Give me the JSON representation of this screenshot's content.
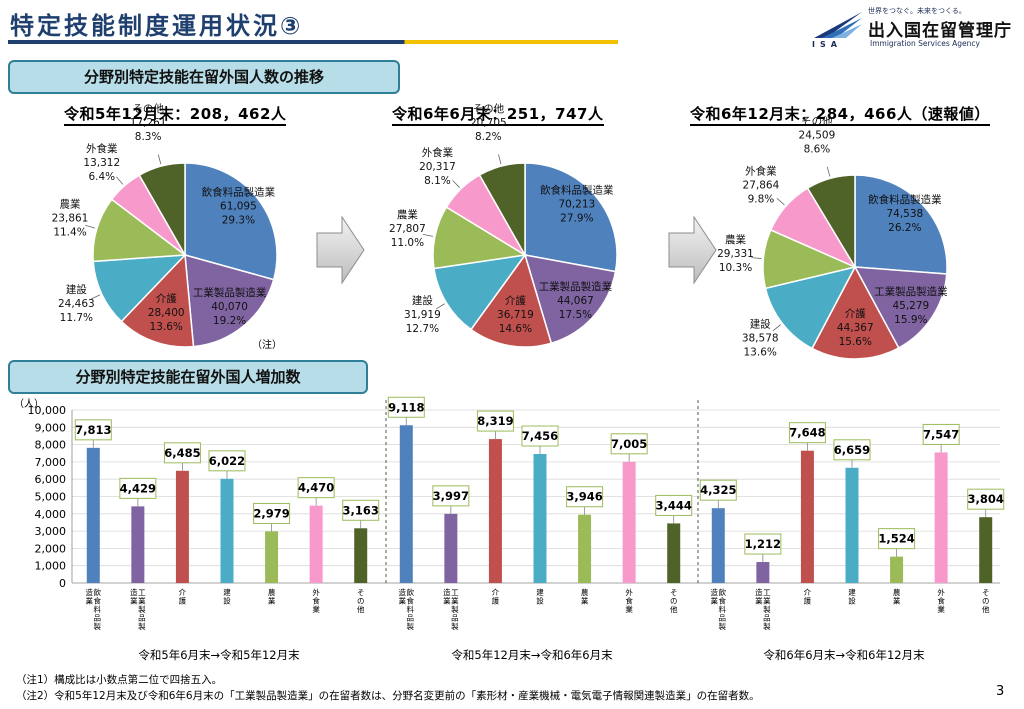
{
  "header": {
    "title": "特定技能制度運用状況③",
    "logo_slogan": "世界をつなぐ。未来をつくる。",
    "logo_abbr": "ISA",
    "logo_name": "出入国在留管理庁",
    "logo_en": "Immigration Services Agency"
  },
  "sections": {
    "pie_heading": "分野別特定技能在留外国人数の推移",
    "bar_heading": "分野別特定技能在留外国人増加数"
  },
  "colors": {
    "飲食料品製造業": "#4f81bd",
    "工業製品製造業": "#8064a2",
    "介護": "#c0504d",
    "建設": "#4bacc6",
    "農業": "#9bbb59",
    "外食業": "#f79acb",
    "その他": "#4f6228"
  },
  "chart_data": [
    {
      "type": "pie",
      "title": "令和5年12月末：208，462人",
      "note": "（注）",
      "slices": [
        {
          "name": "飲食料品製造業",
          "value": 61095,
          "value_label": "61,095",
          "pct_label": "29.3%"
        },
        {
          "name": "工業製品製造業",
          "value": 40070,
          "value_label": "40,070",
          "pct_label": "19.2%"
        },
        {
          "name": "介護",
          "value": 28400,
          "value_label": "28,400",
          "pct_label": "13.6%"
        },
        {
          "name": "建設",
          "value": 24463,
          "value_label": "24,463",
          "pct_label": "11.7%"
        },
        {
          "name": "農業",
          "value": 23861,
          "value_label": "23,861",
          "pct_label": "11.4%"
        },
        {
          "name": "外食業",
          "value": 13312,
          "value_label": "13,312",
          "pct_label": "6.4%"
        },
        {
          "name": "その他",
          "value": 17261,
          "value_label": "17,261",
          "pct_label": "8.3%"
        }
      ]
    },
    {
      "type": "pie",
      "title": "令和6年6月末：251，747人",
      "slices": [
        {
          "name": "飲食料品製造業",
          "value": 70213,
          "value_label": "70,213",
          "pct_label": "27.9%"
        },
        {
          "name": "工業製品製造業",
          "value": 44067,
          "value_label": "44,067",
          "pct_label": "17.5%"
        },
        {
          "name": "介護",
          "value": 36719,
          "value_label": "36,719",
          "pct_label": "14.6%"
        },
        {
          "name": "建設",
          "value": 31919,
          "value_label": "31,919",
          "pct_label": "12.7%"
        },
        {
          "name": "農業",
          "value": 27807,
          "value_label": "27,807",
          "pct_label": "11.0%"
        },
        {
          "name": "外食業",
          "value": 20317,
          "value_label": "20,317",
          "pct_label": "8.1%"
        },
        {
          "name": "その他",
          "value": 20705,
          "value_label": "20,705",
          "pct_label": "8.2%"
        }
      ]
    },
    {
      "type": "pie",
      "title": "令和6年12月末：284，466人（速報値）",
      "slices": [
        {
          "name": "飲食料品製造業",
          "value": 74538,
          "value_label": "74,538",
          "pct_label": "26.2%"
        },
        {
          "name": "工業製品製造業",
          "value": 45279,
          "value_label": "45,279",
          "pct_label": "15.9%"
        },
        {
          "name": "介護",
          "value": 44367,
          "value_label": "44,367",
          "pct_label": "15.6%"
        },
        {
          "name": "建設",
          "value": 38578,
          "value_label": "38,578",
          "pct_label": "13.6%"
        },
        {
          "name": "農業",
          "value": 29331,
          "value_label": "29,331",
          "pct_label": "10.3%"
        },
        {
          "name": "外食業",
          "value": 27864,
          "value_label": "27,864",
          "pct_label": "9.8%"
        },
        {
          "name": "その他",
          "value": 24509,
          "value_label": "24,509",
          "pct_label": "8.6%"
        }
      ]
    },
    {
      "type": "bar",
      "ylabel": "（人）",
      "ylim": [
        0,
        10000
      ],
      "yticks": [
        "0",
        "1,000",
        "2,000",
        "3,000",
        "4,000",
        "5,000",
        "6,000",
        "7,000",
        "8,000",
        "9,000",
        "10,000"
      ],
      "categories": [
        "飲食料品製造業",
        "工業製品製造業",
        "介護",
        "建設",
        "農業",
        "外食業",
        "その他"
      ],
      "category_labels": [
        "飲食料品製造業",
        "工業製品製造業",
        "介護",
        "建設",
        "農業",
        "外食業",
        "その他"
      ],
      "groups": [
        {
          "label": "令和5年6月末→令和5年12月末",
          "values": [
            7813,
            4429,
            6485,
            6022,
            2979,
            4470,
            3163
          ],
          "value_labels": [
            "7,813",
            "4,429",
            "6,485",
            "6,022",
            "2,979",
            "4,470",
            "3,163"
          ]
        },
        {
          "label": "令和5年12月末→令和6年6月末",
          "values": [
            9118,
            3997,
            8319,
            7456,
            3946,
            7005,
            3444
          ],
          "value_labels": [
            "9,118",
            "3,997",
            "8,319",
            "7,456",
            "3,946",
            "7,005",
            "3,444"
          ]
        },
        {
          "label": "令和6年6月末→令和6年12月末",
          "values": [
            4325,
            1212,
            7648,
            6659,
            1524,
            7547,
            3804
          ],
          "value_labels": [
            "4,325",
            "1,212",
            "7,648",
            "6,659",
            "1,524",
            "7,547",
            "3,804"
          ]
        }
      ]
    }
  ],
  "notes": [
    "（注1）構成比は小数点第二位で四捨五入。",
    "（注2）令和5年12月末及び令和6年6月末の「工業製品製造業」の在留者数は、分野名変更前の「素形材・産業機械・電気電子情報関連製造業」の在留者数。"
  ],
  "page_number": "3"
}
